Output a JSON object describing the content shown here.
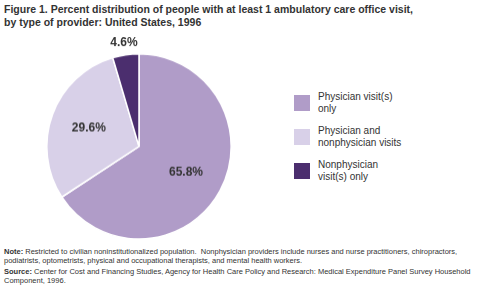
{
  "chart_data": {
    "type": "pie",
    "title": [
      "Figure 1. Percent distribution of people with at least 1 ambulatory care office visit,",
      "by type of provider: United States, 1996"
    ],
    "categories": [
      "Physician visit(s)\nonly",
      "Physician and\nnonphysician visits",
      "Nonphysician\nvisit(s) only"
    ],
    "values": [
      65.8,
      29.6,
      4.6
    ],
    "value_labels": [
      "65.8%",
      "29.6%",
      "4.6%"
    ],
    "colors": [
      "#b09cc8",
      "#d8d0e8",
      "#4b2e6e"
    ],
    "data_labels": true,
    "legend": "right",
    "annotations": [
      "Note: Restricted to civilian noninstitutionalized population.  Nonphysician providers include nurses and nurse practitioners, chiropractors,\npodiatrists, optometrists, physical and occupational therapists, and mental health workers.",
      "Source: Center for Cost and Financing Studies, Agency for Health Care Policy and Research: Medical Expenditure Panel Survey Household\nComponent, 1996."
    ]
  }
}
